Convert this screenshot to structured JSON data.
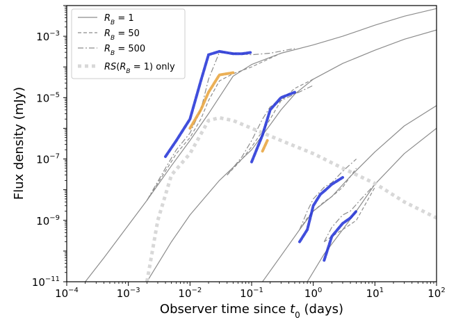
{
  "chart_data": {
    "type": "line",
    "xscale": "log",
    "yscale": "log",
    "xlim": [
      0.0001,
      100
    ],
    "ylim": [
      1e-11,
      0.01
    ],
    "xlabel": "Observer time since t0 (days)",
    "ylabel": "Flux density (mJy)",
    "x_ticks": [
      0.0001,
      0.001,
      0.01,
      0.1,
      1,
      10,
      100
    ],
    "y_ticks": [
      1e-11,
      1e-09,
      1e-07,
      1e-05,
      0.001
    ],
    "x_tick_labels": [
      {
        "base": "10",
        "exp": "−4"
      },
      {
        "base": "10",
        "exp": "−3"
      },
      {
        "base": "10",
        "exp": "−2"
      },
      {
        "base": "10",
        "exp": "−1"
      },
      {
        "base": "10",
        "exp": "0"
      },
      {
        "base": "10",
        "exp": "1"
      },
      {
        "base": "10",
        "exp": "2"
      }
    ],
    "y_tick_labels": [
      {
        "base": "10",
        "exp": "−11"
      },
      {
        "base": "10",
        "exp": "−9"
      },
      {
        "base": "10",
        "exp": "−7"
      },
      {
        "base": "10",
        "exp": "−5"
      },
      {
        "base": "10",
        "exp": "−3"
      }
    ],
    "legend_position": "top-left",
    "legend": [
      {
        "label": "R_B = 1",
        "style": "solid"
      },
      {
        "label": "R_B = 50",
        "style": "dashed"
      },
      {
        "label": "R_B = 500",
        "style": "dashdot"
      },
      {
        "label": "RS(R_B = 1) only",
        "style": "dotted-thick"
      }
    ],
    "colors": {
      "model_line": "#8c8c8c",
      "reverse_shock": "#d8d8d8",
      "highlight_blue": "#1f2fd6",
      "highlight_orange": "#e8a23a"
    },
    "series": [
      {
        "name": "R_B = 1",
        "group": 1,
        "style": "solid",
        "points": [
          [
            0.0002,
            1e-11
          ],
          [
            0.0004,
            6e-11
          ],
          [
            0.001,
            7e-10
          ],
          [
            0.002,
            4.5e-09
          ],
          [
            0.005,
            6e-08
          ],
          [
            0.01,
            4e-07
          ],
          [
            0.02,
            3e-06
          ],
          [
            0.05,
            5e-05
          ],
          [
            0.1,
            0.00012
          ],
          [
            0.3,
            0.00028
          ],
          [
            1,
            0.00052
          ],
          [
            3,
            0.001
          ],
          [
            10,
            0.0023
          ],
          [
            30,
            0.0045
          ],
          [
            100,
            0.008
          ]
        ]
      },
      {
        "name": "R_B = 50",
        "group": 1,
        "style": "dashed",
        "points": [
          [
            0.002,
            4.5e-09
          ],
          [
            0.004,
            4e-08
          ],
          [
            0.006,
            1.5e-07
          ],
          [
            0.01,
            5e-07
          ],
          [
            0.015,
            2e-06
          ],
          [
            0.02,
            8e-06
          ],
          [
            0.03,
            3.5e-05
          ],
          [
            0.05,
            6e-05
          ],
          [
            0.1,
            0.0001
          ],
          [
            0.3,
            0.00028
          ]
        ]
      },
      {
        "name": "R_B = 500",
        "group": 1,
        "style": "dashdot",
        "points": [
          [
            0.002,
            4.5e-09
          ],
          [
            0.004,
            5e-08
          ],
          [
            0.006,
            2e-07
          ],
          [
            0.01,
            7e-07
          ],
          [
            0.015,
            4e-06
          ],
          [
            0.02,
            4e-05
          ],
          [
            0.03,
            0.0003
          ],
          [
            0.05,
            0.00028
          ],
          [
            0.1,
            0.00025
          ],
          [
            0.2,
            0.00028
          ],
          [
            0.5,
            0.0004
          ]
        ]
      },
      {
        "name": "R_B = 1",
        "group": 2,
        "style": "solid",
        "points": [
          [
            0.002,
            1e-11
          ],
          [
            0.005,
            2e-10
          ],
          [
            0.01,
            1.5e-09
          ],
          [
            0.03,
            2e-08
          ],
          [
            0.1,
            2e-07
          ],
          [
            0.2,
            1.3e-06
          ],
          [
            0.3,
            4e-06
          ],
          [
            0.5,
            1.3e-05
          ],
          [
            1,
            4e-05
          ],
          [
            3,
            0.00013
          ],
          [
            10,
            0.00035
          ],
          [
            30,
            0.0008
          ],
          [
            100,
            0.0016
          ]
        ]
      },
      {
        "name": "R_B = 50",
        "group": 2,
        "style": "dashed",
        "points": [
          [
            0.04,
            3e-08
          ],
          [
            0.07,
            1e-07
          ],
          [
            0.1,
            2.5e-07
          ],
          [
            0.15,
            8e-07
          ],
          [
            0.2,
            2e-06
          ],
          [
            0.3,
            8e-06
          ],
          [
            0.5,
            2e-05
          ],
          [
            1,
            4e-05
          ]
        ]
      },
      {
        "name": "R_B = 500",
        "group": 2,
        "style": "dashdot",
        "points": [
          [
            0.04,
            3e-08
          ],
          [
            0.07,
            1.2e-07
          ],
          [
            0.1,
            4e-07
          ],
          [
            0.15,
            2e-06
          ],
          [
            0.2,
            5e-06
          ],
          [
            0.3,
            8e-06
          ],
          [
            0.5,
            1.3e-05
          ],
          [
            1,
            2.5e-05
          ]
        ]
      },
      {
        "name": "R_B = 1",
        "group": 3,
        "style": "solid",
        "points": [
          [
            0.15,
            1e-11
          ],
          [
            0.3,
            7e-11
          ],
          [
            0.6,
            5e-10
          ],
          [
            1,
            2e-09
          ],
          [
            2,
            6e-09
          ],
          [
            4,
            2.7e-08
          ],
          [
            10,
            1.7e-07
          ],
          [
            30,
            1.2e-06
          ],
          [
            100,
            5.5e-06
          ]
        ]
      },
      {
        "name": "R_B = 50",
        "group": 3,
        "style": "dashed",
        "points": [
          [
            0.6,
            5e-10
          ],
          [
            0.8,
            1.2e-09
          ],
          [
            1,
            2e-09
          ],
          [
            1.5,
            4e-09
          ],
          [
            2,
            6e-09
          ],
          [
            3,
            1.2e-08
          ],
          [
            5,
            5e-08
          ]
        ]
      },
      {
        "name": "R_B = 500",
        "group": 3,
        "style": "dashdot",
        "points": [
          [
            0.6,
            5e-10
          ],
          [
            0.8,
            2e-09
          ],
          [
            1,
            5e-09
          ],
          [
            1.5,
            1.2e-08
          ],
          [
            2,
            1.7e-08
          ],
          [
            3,
            4e-08
          ],
          [
            5,
            1e-07
          ]
        ]
      },
      {
        "name": "R_B = 1",
        "group": 4,
        "style": "solid",
        "points": [
          [
            0.8,
            1e-11
          ],
          [
            1.5,
            8e-11
          ],
          [
            3,
            5e-10
          ],
          [
            5,
            2e-09
          ],
          [
            10,
            1.5e-08
          ],
          [
            30,
            1.5e-07
          ],
          [
            100,
            1e-06
          ]
        ]
      },
      {
        "name": "R_B = 50",
        "group": 4,
        "style": "dashed",
        "points": [
          [
            1.5,
            2e-10
          ],
          [
            2,
            3e-10
          ],
          [
            3,
            5e-10
          ],
          [
            5,
            1e-09
          ],
          [
            10,
            1.2e-08
          ]
        ]
      },
      {
        "name": "R_B = 500",
        "group": 4,
        "style": "dashdot",
        "points": [
          [
            1.5,
            2e-10
          ],
          [
            2,
            6e-10
          ],
          [
            3,
            1.5e-09
          ],
          [
            4,
            2e-09
          ],
          [
            6,
            5e-09
          ],
          [
            10,
            1.5e-08
          ]
        ]
      },
      {
        "name": "RS(R_B = 1) only",
        "group": 0,
        "style": "dotted-thick",
        "points": [
          [
            0.002,
            1e-11
          ],
          [
            0.003,
            1e-09
          ],
          [
            0.005,
            3e-08
          ],
          [
            0.01,
            1.5e-07
          ],
          [
            0.02,
            1.8e-06
          ],
          [
            0.03,
            2.2e-06
          ],
          [
            0.05,
            1.8e-06
          ],
          [
            0.1,
            1e-06
          ],
          [
            0.3,
            4e-07
          ],
          [
            1,
            1.5e-07
          ],
          [
            3,
            5e-08
          ],
          [
            10,
            1.6e-08
          ],
          [
            30,
            4e-09
          ],
          [
            100,
            1.2e-09
          ]
        ]
      }
    ],
    "highlights": [
      {
        "color": "blue",
        "points": [
          [
            0.004,
            1.2e-07
          ],
          [
            0.006,
            4e-07
          ],
          [
            0.01,
            2e-06
          ],
          [
            0.015,
            3.5e-05
          ],
          [
            0.02,
            0.00025
          ],
          [
            0.03,
            0.00032
          ],
          [
            0.05,
            0.00027
          ],
          [
            0.07,
            0.00027
          ],
          [
            0.1,
            0.0003
          ]
        ]
      },
      {
        "color": "orange",
        "points": [
          [
            0.01,
            1e-06
          ],
          [
            0.015,
            4e-06
          ],
          [
            0.02,
            1.5e-05
          ],
          [
            0.03,
            5.5e-05
          ],
          [
            0.05,
            6.5e-05
          ]
        ]
      },
      {
        "color": "blue",
        "points": [
          [
            0.1,
            8e-08
          ],
          [
            0.15,
            6e-07
          ],
          [
            0.2,
            4e-06
          ],
          [
            0.3,
            1e-05
          ],
          [
            0.5,
            1.5e-05
          ]
        ]
      },
      {
        "color": "orange",
        "points": [
          [
            0.15,
            1.8e-07
          ],
          [
            0.18,
            4e-07
          ]
        ]
      },
      {
        "color": "blue",
        "points": [
          [
            0.6,
            2e-10
          ],
          [
            0.8,
            5e-10
          ],
          [
            1,
            3e-09
          ],
          [
            1.3,
            7e-09
          ],
          [
            1.6,
            1e-08
          ],
          [
            2,
            1.5e-08
          ],
          [
            3,
            2.5e-08
          ]
        ]
      },
      {
        "color": "blue",
        "points": [
          [
            1.5,
            5e-11
          ],
          [
            2,
            3e-10
          ],
          [
            3,
            8e-10
          ],
          [
            4,
            1.2e-09
          ],
          [
            5,
            2e-09
          ]
        ]
      }
    ]
  }
}
